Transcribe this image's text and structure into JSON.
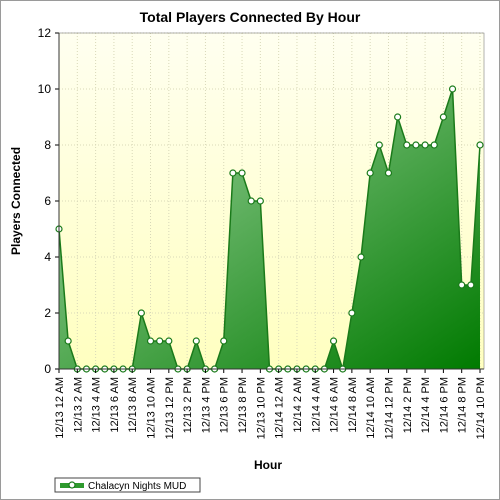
{
  "chart_data": {
    "type": "area",
    "title": "Total Players Connected By Hour",
    "xlabel": "Hour",
    "ylabel": "Players Connected",
    "ylim": [
      0,
      12
    ],
    "yticks": [
      0,
      2,
      4,
      6,
      8,
      10,
      12
    ],
    "grid": true,
    "legend_position": "bottom-left",
    "x": [
      "12/13 12 AM",
      "12/13 1 AM",
      "12/13 2 AM",
      "12/13 3 AM",
      "12/13 4 AM",
      "12/13 5 AM",
      "12/13 6 AM",
      "12/13 7 AM",
      "12/13 8 AM",
      "12/13 9 AM",
      "12/13 10 AM",
      "12/13 11 AM",
      "12/13 12 PM",
      "12/13 1 PM",
      "12/13 2 PM",
      "12/13 3 PM",
      "12/13 4 PM",
      "12/13 5 PM",
      "12/13 6 PM",
      "12/13 7 PM",
      "12/13 8 PM",
      "12/13 9 PM",
      "12/13 10 PM",
      "12/13 11 PM",
      "12/14 12 AM",
      "12/14 1 AM",
      "12/14 2 AM",
      "12/14 3 AM",
      "12/14 4 AM",
      "12/14 5 AM",
      "12/14 6 AM",
      "12/14 7 AM",
      "12/14 8 AM",
      "12/14 9 AM",
      "12/14 10 AM",
      "12/14 11 AM",
      "12/14 12 PM",
      "12/14 1 PM",
      "12/14 2 PM",
      "12/14 3 PM",
      "12/14 4 PM",
      "12/14 5 PM",
      "12/14 6 PM",
      "12/14 7 PM",
      "12/14 8 PM",
      "12/14 9 PM",
      "12/14 10 PM"
    ],
    "x_tick_labels": [
      "12/13 12 AM",
      "12/13 2 AM",
      "12/13 4 AM",
      "12/13 6 AM",
      "12/13 8 AM",
      "12/13 10 AM",
      "12/13 12 PM",
      "12/13 2 PM",
      "12/13 4 PM",
      "12/13 6 PM",
      "12/13 8 PM",
      "12/13 10 PM",
      "12/14 12 AM",
      "12/14 2 AM",
      "12/14 4 AM",
      "12/14 6 AM",
      "12/14 8 AM",
      "12/14 10 AM",
      "12/14 12 PM",
      "12/14 2 PM",
      "12/14 4 PM",
      "12/14 6 PM",
      "12/14 8 PM",
      "12/14 10 PM"
    ],
    "series": [
      {
        "name": "Chalacyn Nights MUD",
        "values": [
          5,
          1,
          0,
          0,
          0,
          0,
          0,
          0,
          0,
          2,
          1,
          1,
          1,
          0,
          0,
          1,
          0,
          0,
          1,
          7,
          7,
          6,
          6,
          0,
          0,
          0,
          0,
          0,
          0,
          0,
          1,
          0,
          2,
          4,
          7,
          8,
          7,
          9,
          8,
          8,
          8,
          8,
          9,
          10,
          3,
          3,
          8
        ]
      }
    ],
    "colors": {
      "line": "#1a7a1a",
      "fill_top": "#a6d8a6",
      "fill_bottom": "#007a00",
      "plot_bg_top": "#fffff0",
      "plot_bg_bottom": "#ffffc0",
      "grid": "#d8d8b8"
    }
  }
}
